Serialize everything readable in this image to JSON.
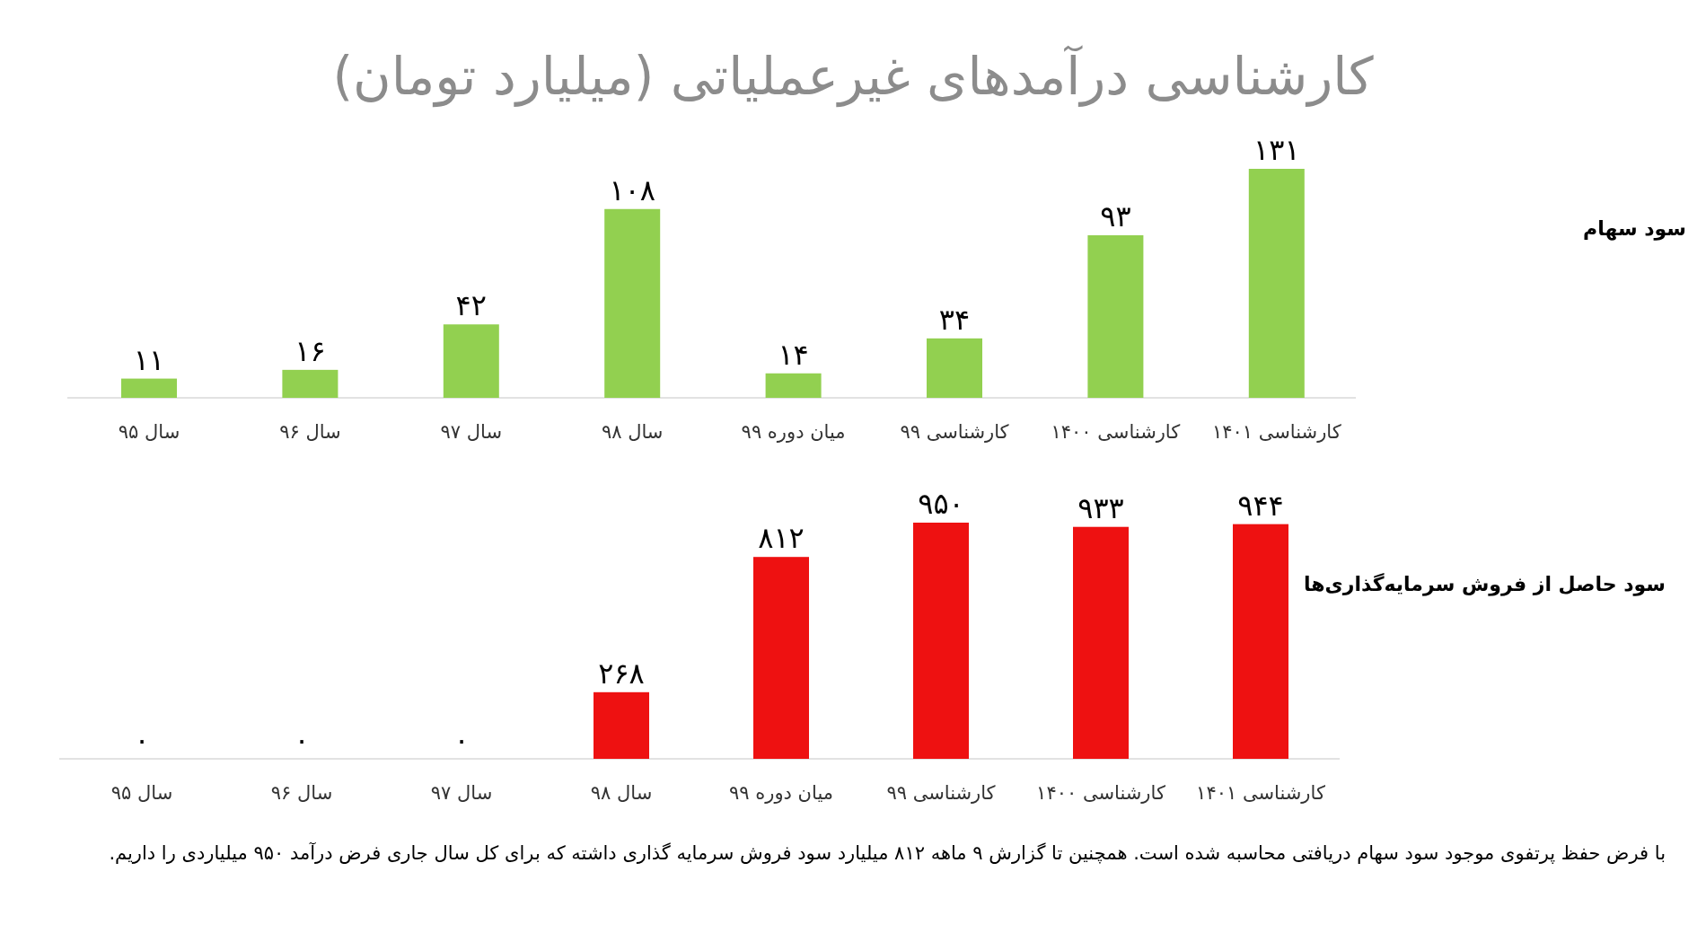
{
  "chart_data": [
    {
      "type": "bar",
      "title": "کارشناسی درآمدهای غیرعملیاتی (میلیارد تومان)",
      "categories": [
        "سال ۹۵",
        "سال ۹۶",
        "سال ۹۷",
        "سال ۹۸",
        "میان دوره ۹۹",
        "کارشناسی ۹۹",
        "کارشناسی ۱۴۰۰",
        "کارشناسی ۱۴۰۱"
      ],
      "series": [
        {
          "name": "سود سهام",
          "color": "#92d050",
          "values": [
            11,
            16,
            42,
            108,
            14,
            34,
            93,
            131
          ],
          "value_labels": [
            "۱۱",
            "۱۶",
            "۴۲",
            "۱۰۸",
            "۱۴",
            "۳۴",
            "۹۳",
            "۱۳۱"
          ]
        }
      ]
    },
    {
      "type": "bar",
      "categories": [
        "سال ۹۵",
        "سال ۹۶",
        "سال ۹۷",
        "سال ۹۸",
        "میان دوره ۹۹",
        "کارشناسی ۹۹",
        "کارشناسی ۱۴۰۰",
        "کارشناسی ۱۴۰۱"
      ],
      "series": [
        {
          "name": "سود حاصل از فروش سرمایه‌گذاری‌ها",
          "color": "#ee1111",
          "values": [
            0,
            0,
            0,
            268,
            812,
            950,
            933,
            944
          ],
          "value_labels": [
            "۰",
            "۰",
            "۰",
            "۲۶۸",
            "۸۱۲",
            "۹۵۰",
            "۹۳۳",
            "۹۴۴"
          ]
        }
      ],
      "annotations": [
        "با فرض حفظ پرتفوی موجود سود سهام دریافتی محاسبه شده است. همچنین تا گزارش ۹ ماهه ۸۱۲ میلیارد سود فروش سرمایه گذاری داشته که برای کل سال جاری فرض درآمد ۹۵۰ میلیاردی را داریم."
      ]
    }
  ]
}
